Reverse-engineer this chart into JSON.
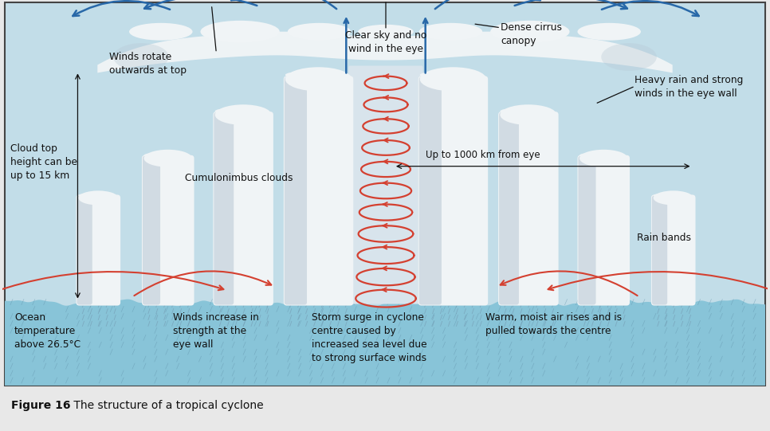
{
  "bg_color": "#c2dde8",
  "ocean_color_top": "#88c4d8",
  "ocean_color_bot": "#5aa8c0",
  "cloud_white": "#f0f4f6",
  "cloud_light": "#e0e8ee",
  "cloud_grey": "#b8c8d4",
  "cloud_dark": "#8090a0",
  "eye_bg": "#c8dce8",
  "figure_bg": "#e8e8e8",
  "border_color": "#444444",
  "spiral_color": "#d44030",
  "arrow_blue": "#2868a8",
  "text_color": "#111111",
  "rain_stripe": "#6090a8",
  "figure_caption_bold": "Figure 16",
  "figure_caption_rest": " The structure of a tropical cyclone",
  "labels": {
    "clear_sky": "Clear sky and no\nwind in the eye",
    "dense_cirrus": "Dense cirrus\ncanopy",
    "heavy_rain": "Heavy rain and strong\nwinds in the eye wall",
    "cloud_top": "Cloud top\nheight can be\nup to 15 km",
    "up_to_1000": "Up to 1000 km from eye",
    "cumulonimbus": "Cumulonimbus clouds",
    "rain_bands": "Rain bands",
    "ocean_temp": "Ocean\ntemperature\nabove 26.5°C",
    "winds_increase": "Winds increase in\nstrength at the\neye wall",
    "storm_surge": "Storm surge in cyclone\ncentre caused by\nincreased sea level due\nto strong surface winds",
    "warm_moist": "Warm, moist air rises and is\npulled towards the centre",
    "winds_rotate": "Winds rotate\noutwards at top"
  }
}
